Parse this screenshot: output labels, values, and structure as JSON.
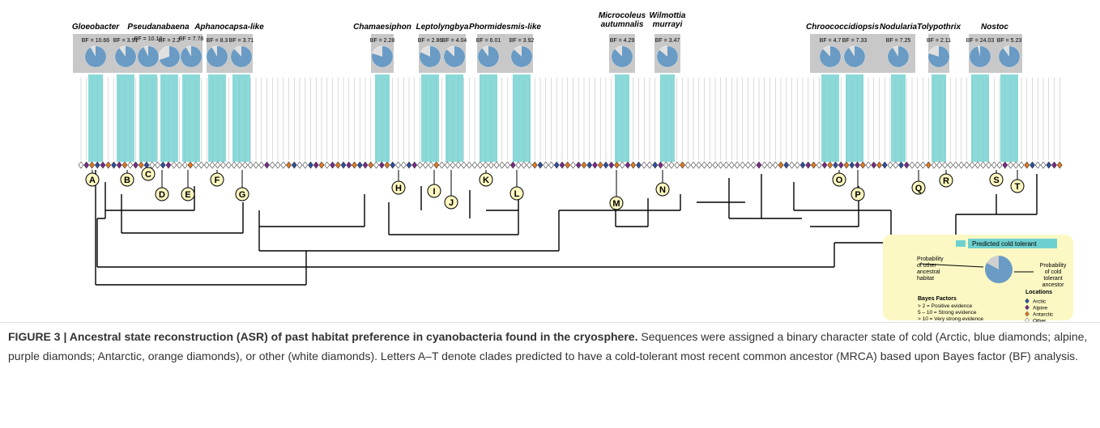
{
  "figure": {
    "groups": [
      {
        "name": [
          "Gloeobacter"
        ],
        "nodes": [
          {
            "bf_label": "BF = 10.66",
            "cold_probability": 92
          }
        ]
      },
      {
        "name": [
          "Pseudanabaena"
        ],
        "nodes": [
          {
            "bf_label": "BF = 3.91",
            "cold_probability": 90
          },
          {
            "bf_label": "BF = 10.13",
            "cold_probability": 93
          },
          {
            "bf_label": "BF = 2.2",
            "cold_probability": 70
          },
          {
            "bf_label": "BF = 7.78",
            "cold_probability": 92
          }
        ]
      },
      {
        "name": [
          "Aphanocapsa-like"
        ],
        "nodes": [
          {
            "bf_label": "BF = 8.3",
            "cold_probability": 92
          },
          {
            "bf_label": "BF = 3.71",
            "cold_probability": 88
          }
        ]
      },
      {
        "name": [
          "Chamaesiphon"
        ],
        "nodes": [
          {
            "bf_label": "BF = 2.28",
            "cold_probability": 80
          }
        ]
      },
      {
        "name": [
          "Leptolyngbya"
        ],
        "nodes": [
          {
            "bf_label": "BF = 2.86",
            "cold_probability": 82
          },
          {
            "bf_label": "BF = 4.04",
            "cold_probability": 87
          }
        ]
      },
      {
        "name": [
          "Phormidesmis-like"
        ],
        "nodes": [
          {
            "bf_label": "BF = 6.01",
            "cold_probability": 90
          },
          {
            "bf_label": "BF = 3.92",
            "cold_probability": 87
          }
        ]
      },
      {
        "name": [
          "Microcoleus",
          "autumnalis"
        ],
        "nodes": [
          {
            "bf_label": "BF = 4.29",
            "cold_probability": 88
          }
        ]
      },
      {
        "name": [
          "Wilmottia",
          "murrayi"
        ],
        "nodes": [
          {
            "bf_label": "BF = 3.47",
            "cold_probability": 86
          }
        ]
      },
      {
        "name": [
          "Chroococcidiopsis"
        ],
        "nodes": [
          {
            "bf_label": "BF = 4.7",
            "cold_probability": 88
          },
          {
            "bf_label": "BF = 7.33",
            "cold_probability": 91
          }
        ]
      },
      {
        "name": [
          "Nodularia"
        ],
        "nodes": [
          {
            "bf_label": "BF = 7.25",
            "cold_probability": 91
          }
        ]
      },
      {
        "name": [
          "Tolypothrix"
        ],
        "nodes": [
          {
            "bf_label": "BF = 2.11",
            "cold_probability": 80
          }
        ]
      },
      {
        "name": [
          "Nostoc"
        ],
        "nodes": [
          {
            "bf_label": "BF = 24.03",
            "cold_probability": 96
          },
          {
            "bf_label": "BF = 5.23",
            "cold_probability": 90
          }
        ]
      }
    ],
    "clade_labels": [
      "A",
      "B",
      "C",
      "D",
      "E",
      "F",
      "G",
      "H",
      "I",
      "J",
      "K",
      "L",
      "M",
      "N",
      "O",
      "P",
      "Q",
      "R",
      "S",
      "T"
    ],
    "legend": {
      "predicted": "Predicted cold tolerant",
      "other_prob": [
        "Probability",
        "of other",
        "ancestral",
        "habitat"
      ],
      "cold_prob": [
        "Probability",
        "of cold",
        "tolerant",
        "ancestor"
      ],
      "bayes_title": "Bayes Factors",
      "bayes_items": [
        "> 2 = Positive evidence",
        "5 – 10 = Strong evidence",
        "> 10 = Very strong evidence"
      ],
      "locations_title": "Locations",
      "locations": [
        "Arctic",
        "Alpine",
        "Antarctic",
        "Other"
      ]
    },
    "caption": {
      "bold": "FIGURE 3 | Ancestral state reconstruction (ASR) of past habitat preference in cyanobacteria found in the cryosphere.",
      "text": " Sequences were assigned a binary character state of cold (Arctic, blue diamonds; alpine, purple diamonds; Antarctic, orange diamonds), or other (white diamonds). Letters A–T denote clades predicted to have a cold-tolerant most recent common ancestor (MRCA) based upon Bayes factor (BF) analysis."
    }
  }
}
